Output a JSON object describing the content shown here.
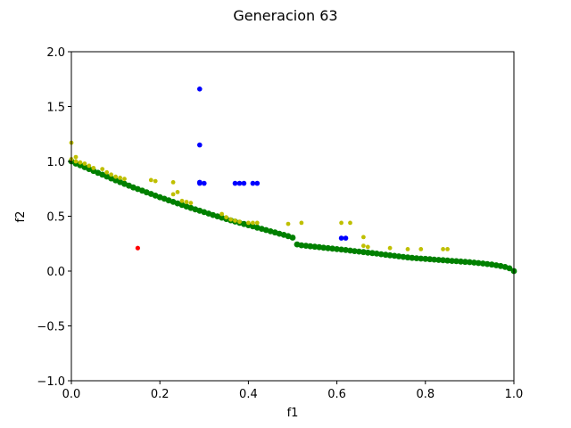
{
  "chart_data": {
    "type": "scatter",
    "title": "Generacion 63",
    "xlabel": "f1",
    "ylabel": "f2",
    "xlim": [
      0,
      1
    ],
    "ylim": [
      -1,
      2
    ],
    "xticks": [
      "0.0",
      "0.2",
      "0.4",
      "0.6",
      "0.8",
      "1.0"
    ],
    "yticks": [
      "−1.0",
      "−0.5",
      "0.0",
      "0.5",
      "1.0",
      "1.5",
      "2.0"
    ],
    "grid": false,
    "series": [
      {
        "color": "#008000",
        "marker_size": 3.4,
        "kind": "pareto-front",
        "x": [
          0.0,
          0.01,
          0.02,
          0.03,
          0.04,
          0.05,
          0.06,
          0.07,
          0.08,
          0.09,
          0.1,
          0.11,
          0.12,
          0.13,
          0.14,
          0.15,
          0.16,
          0.17,
          0.18,
          0.19,
          0.2,
          0.21,
          0.22,
          0.23,
          0.24,
          0.25,
          0.26,
          0.27,
          0.28,
          0.29,
          0.3,
          0.31,
          0.32,
          0.33,
          0.34,
          0.35,
          0.36,
          0.37,
          0.38,
          0.39,
          0.4,
          0.41,
          0.42,
          0.43,
          0.44,
          0.45,
          0.46,
          0.47,
          0.48,
          0.49,
          0.5,
          0.51,
          0.52,
          0.53,
          0.54,
          0.55,
          0.56,
          0.57,
          0.58,
          0.59,
          0.6,
          0.61,
          0.62,
          0.63,
          0.64,
          0.65,
          0.66,
          0.67,
          0.68,
          0.69,
          0.7,
          0.71,
          0.72,
          0.73,
          0.74,
          0.75,
          0.76,
          0.77,
          0.78,
          0.79,
          0.8,
          0.81,
          0.82,
          0.83,
          0.84,
          0.85,
          0.86,
          0.87,
          0.88,
          0.89,
          0.9,
          0.91,
          0.92,
          0.93,
          0.94,
          0.95,
          0.96,
          0.97,
          0.98,
          0.99,
          1.0
        ],
        "y": [
          1.0,
          0.98,
          0.965,
          0.947,
          0.93,
          0.913,
          0.896,
          0.879,
          0.862,
          0.845,
          0.828,
          0.811,
          0.795,
          0.779,
          0.763,
          0.748,
          0.733,
          0.718,
          0.703,
          0.688,
          0.673,
          0.659,
          0.645,
          0.631,
          0.617,
          0.603,
          0.589,
          0.576,
          0.563,
          0.55,
          0.537,
          0.524,
          0.511,
          0.499,
          0.487,
          0.475,
          0.463,
          0.451,
          0.44,
          0.429,
          0.418,
          0.407,
          0.396,
          0.385,
          0.374,
          0.363,
          0.352,
          0.341,
          0.33,
          0.319,
          0.305,
          0.243,
          0.235,
          0.231,
          0.226,
          0.222,
          0.218,
          0.213,
          0.209,
          0.205,
          0.2,
          0.196,
          0.192,
          0.187,
          0.182,
          0.178,
          0.173,
          0.168,
          0.164,
          0.159,
          0.154,
          0.149,
          0.144,
          0.139,
          0.134,
          0.129,
          0.124,
          0.12,
          0.117,
          0.114,
          0.111,
          0.108,
          0.105,
          0.102,
          0.099,
          0.096,
          0.093,
          0.09,
          0.087,
          0.084,
          0.081,
          0.077,
          0.073,
          0.069,
          0.064,
          0.059,
          0.053,
          0.046,
          0.037,
          0.025,
          0.0
        ]
      },
      {
        "color": "#bfbf00",
        "marker_size": 2.4,
        "x": [
          0.0,
          0.0,
          0.01,
          0.01,
          0.02,
          0.03,
          0.04,
          0.05,
          0.07,
          0.08,
          0.09,
          0.1,
          0.11,
          0.12,
          0.18,
          0.19,
          0.23,
          0.23,
          0.24,
          0.25,
          0.26,
          0.27,
          0.34,
          0.35,
          0.36,
          0.37,
          0.38,
          0.4,
          0.41,
          0.42,
          0.49,
          0.52,
          0.61,
          0.63,
          0.66,
          0.66,
          0.67,
          0.72,
          0.76,
          0.79,
          0.84,
          0.85
        ],
        "y": [
          1.17,
          1.02,
          1.04,
          1.0,
          0.99,
          0.98,
          0.96,
          0.94,
          0.93,
          0.9,
          0.88,
          0.86,
          0.85,
          0.84,
          0.83,
          0.82,
          0.81,
          0.7,
          0.72,
          0.64,
          0.63,
          0.62,
          0.52,
          0.49,
          0.47,
          0.46,
          0.45,
          0.44,
          0.44,
          0.44,
          0.43,
          0.44,
          0.44,
          0.44,
          0.31,
          0.23,
          0.22,
          0.21,
          0.2,
          0.2,
          0.2,
          0.2
        ]
      },
      {
        "color": "#0000ff",
        "marker_size": 2.8,
        "x": [
          0.29,
          0.29,
          0.29,
          0.29,
          0.3,
          0.37,
          0.38,
          0.39,
          0.41,
          0.42,
          0.61,
          0.62
        ],
        "y": [
          1.66,
          1.15,
          0.81,
          0.8,
          0.8,
          0.8,
          0.8,
          0.8,
          0.8,
          0.8,
          0.3,
          0.3
        ]
      },
      {
        "color": "#ff0000",
        "marker_size": 2.6,
        "x": [
          0.15
        ],
        "y": [
          0.21
        ]
      }
    ]
  }
}
